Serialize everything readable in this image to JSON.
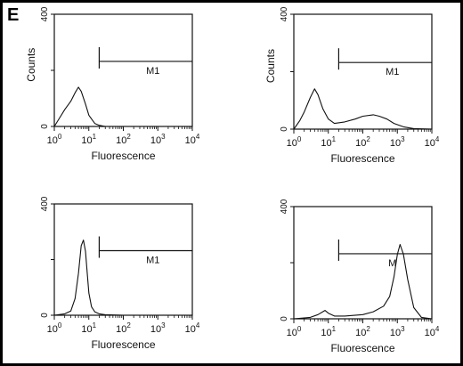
{
  "panel_letter": "E",
  "chart_data": [
    {
      "type": "line",
      "xlabel": "Fluorescence",
      "ylabel": "Counts",
      "x_scale": "log",
      "xlim": [
        1,
        10000
      ],
      "ylim": [
        0,
        400
      ],
      "x_ticks": [
        "10^0",
        "10^1",
        "10^2",
        "10^3",
        "10^4"
      ],
      "y_ticks": [
        "0",
        "200",
        "400"
      ],
      "marker": {
        "label": "M1",
        "range": [
          20,
          10000
        ]
      },
      "series": [
        {
          "x": [
            1,
            1.5,
            2,
            3,
            4,
            5,
            6,
            8,
            10,
            15,
            20,
            30,
            50,
            100,
            10000
          ],
          "y": [
            0,
            35,
            60,
            90,
            120,
            140,
            125,
            80,
            40,
            10,
            4,
            0,
            0,
            0,
            0
          ]
        }
      ]
    },
    {
      "type": "line",
      "xlabel": "Fluorescence",
      "ylabel": "Counts",
      "x_scale": "log",
      "xlim": [
        1,
        10000
      ],
      "ylim": [
        0,
        400
      ],
      "x_ticks": [
        "10^0",
        "10^1",
        "10^2",
        "10^3",
        "10^4"
      ],
      "y_ticks": [
        "0",
        "200",
        "400"
      ],
      "marker": {
        "label": "M1",
        "range": [
          20,
          10000
        ]
      },
      "series": [
        {
          "x": [
            1,
            1.5,
            2,
            3,
            4,
            5,
            7,
            10,
            15,
            30,
            60,
            100,
            200,
            300,
            500,
            800,
            1500,
            3000,
            10000
          ],
          "y": [
            0,
            30,
            60,
            110,
            140,
            120,
            70,
            35,
            20,
            25,
            35,
            45,
            50,
            45,
            35,
            20,
            8,
            2,
            0
          ]
        }
      ]
    },
    {
      "type": "line",
      "xlabel": "Fluorescence",
      "ylabel": "",
      "x_scale": "log",
      "xlim": [
        1,
        10000
      ],
      "ylim": [
        0,
        400
      ],
      "x_ticks": [
        "10^0",
        "10^1",
        "10^2",
        "10^3",
        "10^4"
      ],
      "y_ticks": [
        "0",
        "200",
        "400"
      ],
      "marker": {
        "label": "M1",
        "range": [
          20,
          10000
        ]
      },
      "series": [
        {
          "x": [
            1,
            2,
            3,
            4,
            5,
            6,
            7,
            8,
            9,
            10,
            12,
            15,
            20,
            30,
            100,
            10000
          ],
          "y": [
            0,
            5,
            15,
            60,
            150,
            250,
            270,
            230,
            150,
            80,
            30,
            12,
            5,
            2,
            0,
            0
          ]
        }
      ]
    },
    {
      "type": "line",
      "xlabel": "Fluorescence",
      "ylabel": "",
      "x_scale": "log",
      "xlim": [
        1,
        10000
      ],
      "ylim": [
        0,
        400
      ],
      "x_ticks": [
        "10^0",
        "10^1",
        "10^2",
        "10^3",
        "10^4"
      ],
      "y_ticks": [
        "0",
        "200",
        "400"
      ],
      "marker": {
        "label": "M",
        "range": [
          20,
          10000
        ]
      },
      "series": [
        {
          "x": [
            1,
            3,
            5,
            8,
            10,
            15,
            30,
            100,
            200,
            400,
            600,
            800,
            1000,
            1200,
            1500,
            2000,
            3000,
            5000,
            10000
          ],
          "y": [
            0,
            5,
            15,
            30,
            20,
            10,
            10,
            15,
            25,
            45,
            80,
            150,
            230,
            265,
            230,
            140,
            40,
            5,
            0
          ]
        }
      ]
    }
  ]
}
